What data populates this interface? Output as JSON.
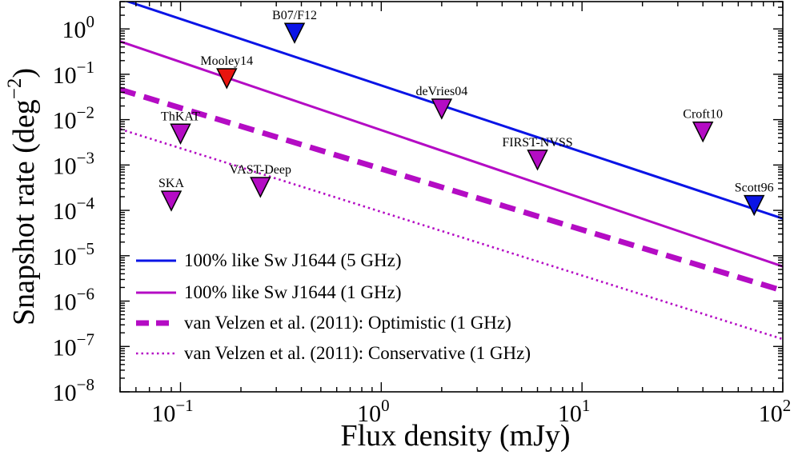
{
  "chart_data": {
    "type": "line",
    "xlabel": "Flux density (mJy)",
    "ylabel": "Snapshot rate (deg",
    "ylabel_superscript": "−2",
    "ylabel_close": ")",
    "x_scale": "log",
    "y_scale": "log",
    "xlim": [
      0.05,
      100
    ],
    "ylim": [
      1e-08,
      4
    ],
    "x_ticks": [
      {
        "value": 0.1,
        "base": "10",
        "exp": "−1"
      },
      {
        "value": 1,
        "base": "10",
        "exp": "0"
      },
      {
        "value": 10,
        "base": "10",
        "exp": "1"
      },
      {
        "value": 100,
        "base": "10",
        "exp": "2"
      }
    ],
    "y_ticks": [
      {
        "value": 1e-08,
        "base": "10",
        "exp": "−8"
      },
      {
        "value": 1e-07,
        "base": "10",
        "exp": "−7"
      },
      {
        "value": 1e-06,
        "base": "10",
        "exp": "−6"
      },
      {
        "value": 1e-05,
        "base": "10",
        "exp": "−5"
      },
      {
        "value": 0.0001,
        "base": "10",
        "exp": "−4"
      },
      {
        "value": 0.001,
        "base": "10",
        "exp": "−3"
      },
      {
        "value": 0.01,
        "base": "10",
        "exp": "−2"
      },
      {
        "value": 0.1,
        "base": "10",
        "exp": "−1"
      },
      {
        "value": 1,
        "base": "10",
        "exp": "0"
      }
    ],
    "grid": false,
    "legend_position": "lower-left",
    "series": [
      {
        "name": "100% like Sw J1644 (5 GHz)",
        "color": "#0a14e6",
        "style": "solid",
        "x": [
          0.05,
          100
        ],
        "y": [
          4.6,
          6.6e-05
        ]
      },
      {
        "name": "100% like Sw J1644 (1 GHz)",
        "color": "#b40cc4",
        "style": "solid",
        "x": [
          0.05,
          100
        ],
        "y": [
          0.53,
          5.8e-06
        ]
      },
      {
        "name": "van Velzen et al. (2011): Optimistic (1 GHz)",
        "color": "#b40cc4",
        "style": "dashed",
        "x": [
          0.05,
          100
        ],
        "y": [
          0.046,
          1.7e-06
        ]
      },
      {
        "name": "van Velzen et al. (2011): Conservative (1 GHz)",
        "color": "#b40cc4",
        "style": "dotted",
        "x": [
          0.05,
          100
        ],
        "y": [
          0.0062,
          1.45e-07
        ]
      }
    ],
    "markers": [
      {
        "label": "B07/F12",
        "x": 0.37,
        "y": 0.75,
        "color": "#0a14e6"
      },
      {
        "label": "Mooley14",
        "x": 0.17,
        "y": 0.075,
        "color": "#e8150f"
      },
      {
        "label": "deVries04",
        "x": 2.0,
        "y": 0.016,
        "color": "#b40cc4"
      },
      {
        "label": "ThKAT",
        "x": 0.1,
        "y": 0.0045,
        "color": "#b40cc4"
      },
      {
        "label": "Croft10",
        "x": 40,
        "y": 0.005,
        "color": "#b40cc4"
      },
      {
        "label": "FIRST-NVSS",
        "x": 6.0,
        "y": 0.0012,
        "color": "#b40cc4"
      },
      {
        "label": "VAST-Deep",
        "x": 0.25,
        "y": 0.0003,
        "color": "#b40cc4"
      },
      {
        "label": "SKA",
        "x": 0.09,
        "y": 0.00015,
        "color": "#b40cc4"
      },
      {
        "label": "Scott96",
        "x": 72,
        "y": 0.00012,
        "color": "#0a14e6"
      }
    ]
  }
}
